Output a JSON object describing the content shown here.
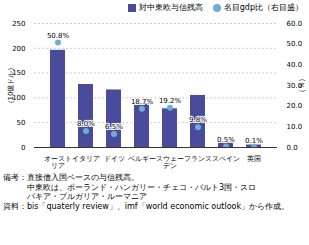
{
  "chart_data": {
    "type": "bar",
    "categories": [
      "オースト\nリア",
      "イタリア",
      "ドイツ",
      "ベルギー",
      "スウェー\nデン",
      "フランス",
      "スペイン",
      "英国"
    ],
    "series": [
      {
        "name": "対中東欧与信残高",
        "type": "bar",
        "color": "#4b4b9b",
        "values": [
          196,
          127,
          116,
          88,
          78,
          105,
          10,
          5
        ]
      },
      {
        "name": "名目gdp比（右目盛）",
        "type": "scatter",
        "marker": "circle",
        "color": "#6ab0d4",
        "axis": "y2",
        "data_labels": true,
        "values": [
          50.8,
          8.0,
          6.5,
          18.7,
          19.2,
          9.8,
          0.5,
          0.1
        ],
        "value_labels": [
          "50.8%",
          "8.0%",
          "6.5%",
          "18.7%",
          "19.2%",
          "9.8%",
          "0.5%",
          "0.1%"
        ]
      }
    ],
    "ylim": [
      0,
      250
    ],
    "yticks": [
      0,
      50,
      100,
      150,
      200,
      250
    ],
    "y2lim": [
      0,
      60
    ],
    "y2ticks": [
      {
        "value": 0,
        "label": "0.0"
      },
      {
        "value": 10,
        "label": "10.0"
      },
      {
        "value": 20,
        "label": "20.0"
      },
      {
        "value": 30,
        "label": "30.0"
      },
      {
        "value": 40,
        "label": "40.0"
      },
      {
        "value": 50,
        "label": "50.0"
      },
      {
        "value": 60,
        "label": "60.0"
      }
    ],
    "ylabel": "（10億ドル）",
    "y2label": "（％）",
    "grid": true,
    "legend": "upper right",
    "notes": [
      "備考：直接借入国ベースの与信残高。",
      "　　　中東欧は、ポーランド・ハンガリー・チェコ・バルト3国・スロ",
      "　　　バキア・ブルガリア・ルーマニア"
    ],
    "source": "資料：bis「quaterly review」、imf「world economic outlook」から作成。"
  }
}
